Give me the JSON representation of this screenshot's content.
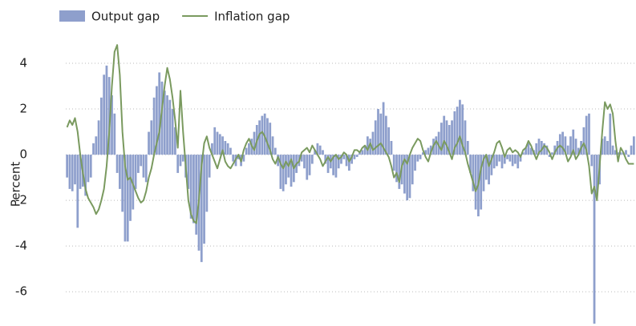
{
  "chart_data": {
    "type": "bar",
    "ylabel": "Percent",
    "ylim": [
      -7.5,
      5
    ],
    "yticks": [
      -6,
      -4,
      -2,
      0,
      2,
      4
    ],
    "grid": true,
    "legend": "top-left",
    "series": [
      {
        "name": "Output gap",
        "type": "bar",
        "color": "#8e9fcc",
        "values": [
          -1.0,
          -1.5,
          -1.6,
          -1.3,
          -3.2,
          -1.5,
          -1.4,
          -1.8,
          -1.2,
          -1.0,
          0.5,
          0.8,
          1.5,
          2.5,
          3.5,
          3.9,
          3.4,
          2.6,
          1.8,
          -0.8,
          -1.5,
          -2.5,
          -3.8,
          -3.8,
          -2.9,
          -2.4,
          -1.5,
          -0.8,
          -0.5,
          -1.0,
          -1.2,
          1.0,
          1.5,
          2.5,
          3.0,
          3.6,
          3.2,
          2.8,
          2.6,
          2.4,
          2.0,
          1.2,
          -0.8,
          -0.5,
          -0.3,
          -1.0,
          -1.5,
          -2.8,
          -3.0,
          -3.5,
          -4.2,
          -4.7,
          -3.9,
          -2.5,
          -1.0,
          0.5,
          1.2,
          1.0,
          0.9,
          0.8,
          0.6,
          0.5,
          0.3,
          -0.3,
          -0.5,
          -0.2,
          -0.5,
          -0.3,
          0.3,
          0.5,
          0.7,
          1.0,
          1.3,
          1.5,
          1.7,
          1.8,
          1.6,
          1.4,
          0.8,
          0.3,
          -0.5,
          -1.5,
          -1.6,
          -1.3,
          -1.0,
          -1.4,
          -1.2,
          -0.8,
          -0.5,
          -0.3,
          -0.6,
          -1.1,
          -0.9,
          -0.4,
          0.2,
          0.5,
          0.4,
          0.2,
          -0.4,
          -0.8,
          -0.6,
          -0.9,
          -1.0,
          -0.6,
          -0.4,
          -0.2,
          -0.5,
          -0.7,
          -0.4,
          -0.2,
          -0.1,
          0.1,
          0.2,
          0.4,
          0.8,
          0.7,
          1.0,
          1.5,
          2.0,
          1.8,
          2.3,
          1.7,
          1.2,
          0.6,
          -0.7,
          -1.2,
          -1.5,
          -1.3,
          -1.7,
          -2.0,
          -1.9,
          -1.3,
          -0.7,
          -0.3,
          -0.2,
          0.1,
          0.2,
          0.3,
          0.4,
          0.7,
          0.8,
          1.0,
          1.4,
          1.7,
          1.5,
          1.3,
          1.5,
          1.9,
          2.1,
          2.4,
          2.2,
          1.5,
          0.6,
          -0.8,
          -1.6,
          -2.4,
          -2.7,
          -2.4,
          -1.6,
          -1.1,
          -1.3,
          -0.9,
          -0.6,
          -0.5,
          -0.3,
          -0.6,
          -0.4,
          -0.2,
          -0.3,
          -0.5,
          -0.4,
          -0.6,
          -0.3,
          0.1,
          0.3,
          0.5,
          0.3,
          0.2,
          0.5,
          0.7,
          0.6,
          0.5,
          0.4,
          -0.1,
          0.1,
          0.4,
          0.6,
          0.9,
          1.0,
          0.8,
          0.4,
          0.8,
          1.1,
          0.7,
          0.3,
          0.6,
          1.2,
          1.7,
          1.8,
          -0.5,
          -7.4,
          -1.8,
          -1.3,
          0.7,
          0.8,
          0.6,
          1.8,
          0.4,
          0.2,
          0.1,
          0.1,
          0.1,
          0.2,
          -0.1,
          0.4,
          0.8
        ]
      },
      {
        "name": "Inflation gap",
        "type": "line",
        "color": "#7a9a5f",
        "values": [
          1.2,
          1.5,
          1.3,
          1.6,
          1.0,
          0.0,
          -0.8,
          -1.5,
          -1.9,
          -2.1,
          -2.3,
          -2.6,
          -2.4,
          -2.0,
          -1.5,
          -0.5,
          1.0,
          3.0,
          4.5,
          4.8,
          3.5,
          1.0,
          -0.5,
          -1.1,
          -1.0,
          -1.3,
          -1.6,
          -1.9,
          -2.1,
          -2.0,
          -1.6,
          -1.0,
          -0.6,
          0.0,
          0.5,
          1.0,
          2.0,
          3.0,
          3.8,
          3.3,
          2.5,
          1.5,
          0.3,
          2.8,
          1.0,
          -0.5,
          -2.0,
          -2.6,
          -2.9,
          -3.0,
          -2.0,
          -0.5,
          0.5,
          0.8,
          0.3,
          0.0,
          -0.3,
          -0.6,
          -0.2,
          0.2,
          -0.3,
          -0.5,
          -0.6,
          -0.4,
          -0.2,
          0.0,
          -0.3,
          0.2,
          0.5,
          0.7,
          0.4,
          0.2,
          0.6,
          0.9,
          1.0,
          0.8,
          0.5,
          0.2,
          -0.2,
          -0.4,
          -0.1,
          -0.4,
          -0.6,
          -0.3,
          -0.5,
          -0.2,
          -0.6,
          -0.4,
          -0.3,
          0.1,
          0.2,
          0.3,
          0.1,
          0.4,
          0.2,
          0.0,
          -0.2,
          -0.5,
          -0.3,
          -0.1,
          -0.3,
          -0.1,
          0.0,
          -0.2,
          -0.1,
          0.1,
          0.0,
          -0.3,
          -0.1,
          0.2,
          0.2,
          0.1,
          0.3,
          0.4,
          0.2,
          0.5,
          0.2,
          0.3,
          0.4,
          0.5,
          0.3,
          0.1,
          -0.1,
          -0.5,
          -1.0,
          -0.8,
          -1.2,
          -0.5,
          -0.2,
          -0.4,
          0.0,
          0.3,
          0.5,
          0.7,
          0.6,
          0.2,
          -0.1,
          -0.3,
          0.1,
          0.4,
          0.6,
          0.4,
          0.2,
          0.6,
          0.4,
          0.1,
          -0.2,
          0.3,
          0.5,
          0.8,
          0.4,
          0.1,
          -0.4,
          -0.8,
          -1.2,
          -1.6,
          -1.3,
          -0.6,
          -0.2,
          0.0,
          -0.5,
          -0.2,
          0.1,
          0.5,
          0.6,
          0.3,
          -0.1,
          0.2,
          0.3,
          0.1,
          0.2,
          0.1,
          -0.1,
          0.2,
          0.3,
          0.6,
          0.4,
          0.1,
          -0.2,
          0.1,
          0.2,
          0.4,
          0.3,
          0.1,
          -0.2,
          0.1,
          0.3,
          0.4,
          0.3,
          0.1,
          -0.3,
          -0.1,
          0.2,
          -0.2,
          0.0,
          0.3,
          0.5,
          0.2,
          -0.5,
          -1.7,
          -1.4,
          -2.0,
          -0.5,
          1.0,
          2.3,
          2.0,
          2.2,
          1.8,
          0.6,
          -0.3,
          0.3,
          0.1,
          -0.2,
          -0.4,
          -0.4,
          -0.4
        ]
      }
    ]
  }
}
